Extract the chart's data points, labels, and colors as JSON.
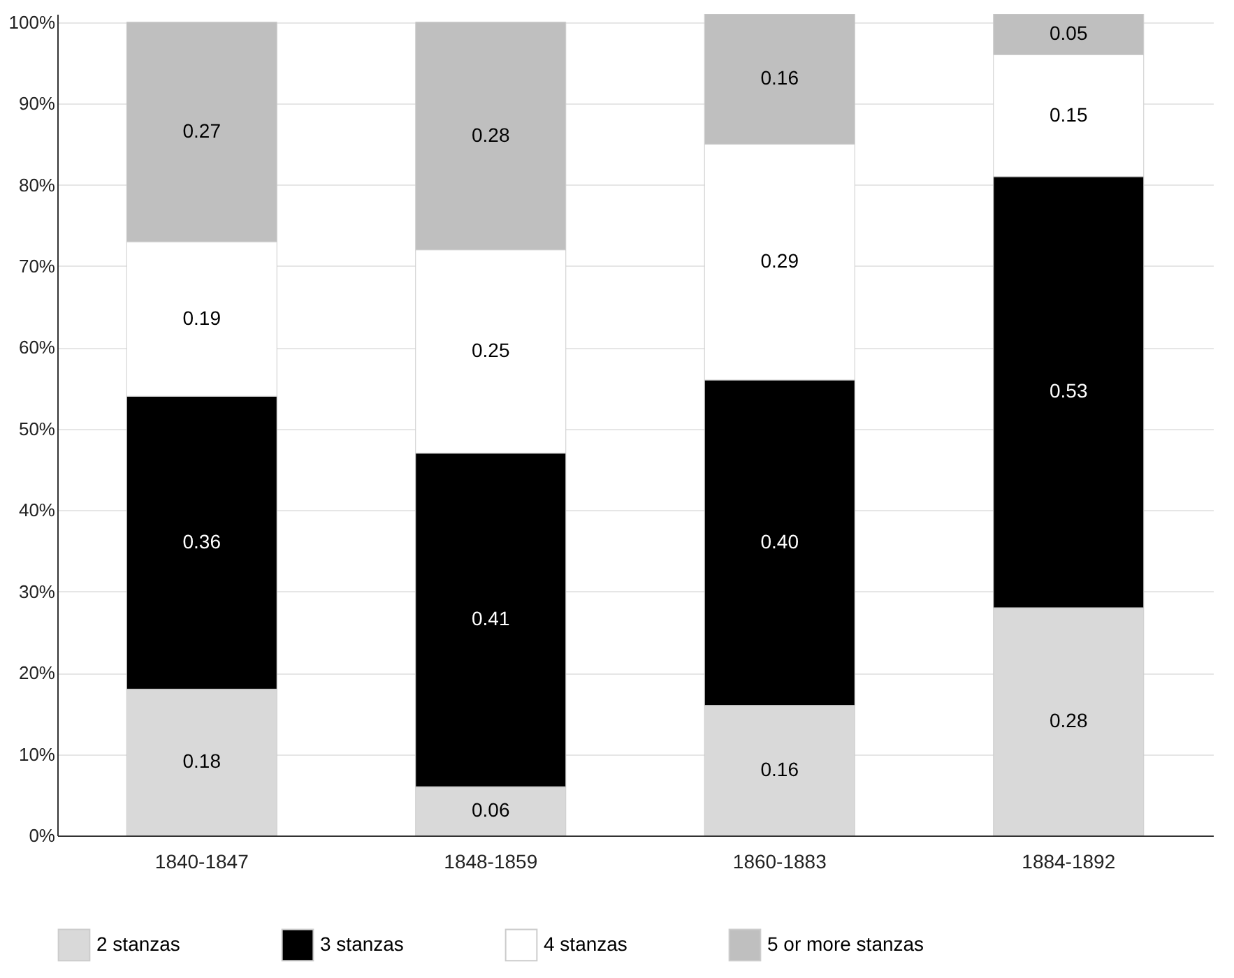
{
  "chart_data": {
    "type": "bar",
    "stacked": true,
    "categories": [
      "1840-1847",
      "1848-1859",
      "1860-1883",
      "1884-1892"
    ],
    "series": [
      {
        "name": "2 stanzas",
        "color": "#d9d9d9",
        "values": [
          0.18,
          0.06,
          0.16,
          0.28
        ],
        "value_labels": [
          "0.18",
          "0.06",
          "0.16",
          "0.28"
        ]
      },
      {
        "name": "3 stanzas",
        "color": "#000000",
        "values": [
          0.36,
          0.41,
          0.4,
          0.53
        ],
        "value_labels": [
          "0.36",
          "0.41",
          "0.40",
          "0.53"
        ]
      },
      {
        "name": "4 stanzas",
        "color": "#ffffff",
        "values": [
          0.19,
          0.25,
          0.29,
          0.15
        ],
        "value_labels": [
          "0.19",
          "0.25",
          "0.29",
          "0.15"
        ]
      },
      {
        "name": "5 or more stanzas",
        "color": "#bfbfbf",
        "values": [
          0.27,
          0.28,
          0.16,
          0.05
        ],
        "value_labels": [
          "0.27",
          "0.28",
          "0.16",
          "0.05"
        ]
      }
    ],
    "ylim": [
      0,
      1.01
    ],
    "yticks": [
      {
        "value": 0,
        "label": "0%"
      },
      {
        "value": 0.1,
        "label": "10%"
      },
      {
        "value": 0.2,
        "label": "20%"
      },
      {
        "value": 0.3,
        "label": "30%"
      },
      {
        "value": 0.4,
        "label": "40%"
      },
      {
        "value": 0.5,
        "label": "50%"
      },
      {
        "value": 0.6,
        "label": "60%"
      },
      {
        "value": 0.7,
        "label": "70%"
      },
      {
        "value": 0.8,
        "label": "80%"
      },
      {
        "value": 0.9,
        "label": "90%"
      },
      {
        "value": 1,
        "label": "100%"
      }
    ],
    "grid": "y",
    "legend": "bottom"
  }
}
